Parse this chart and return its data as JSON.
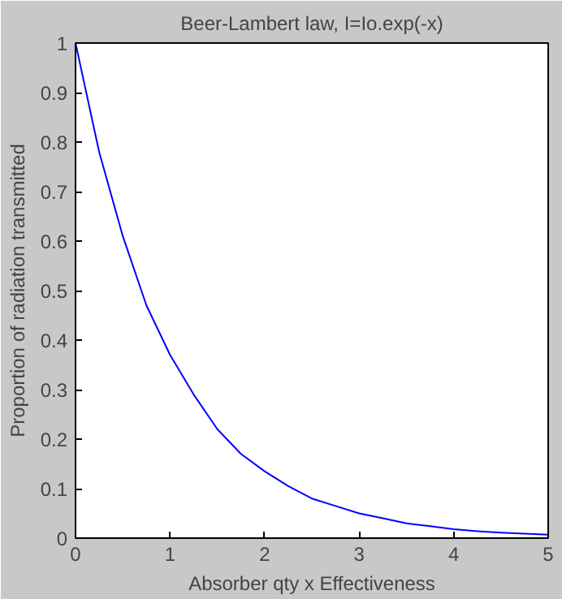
{
  "chart_data": {
    "type": "line",
    "title": "Beer-Lambert law, I=Io.exp(-x)",
    "xlabel": "Absorber qty x Effectiveness",
    "ylabel": "Proportion of radiation transmitted",
    "x": [
      0,
      0.25,
      0.5,
      0.75,
      1,
      1.25,
      1.5,
      1.75,
      2,
      2.25,
      2.5,
      2.75,
      3,
      3.25,
      3.5,
      3.75,
      4,
      4.25,
      4.5,
      4.75,
      5
    ],
    "series": [
      {
        "color": "#0000ff",
        "values": [
          1,
          0.78,
          0.61,
          0.47,
          0.37,
          0.29,
          0.22,
          0.17,
          0.135,
          0.105,
          0.08,
          0.065,
          0.05,
          0.04,
          0.03,
          0.024,
          0.018,
          0.014,
          0.011,
          0.009,
          0.007
        ]
      }
    ],
    "xlim": [
      0,
      5
    ],
    "ylim": [
      0,
      1
    ],
    "xticks": [
      0,
      1,
      2,
      3,
      4,
      5
    ],
    "yticks": [
      0,
      0.1,
      0.2,
      0.3,
      0.4,
      0.5,
      0.6,
      0.7,
      0.8,
      0.9,
      1
    ],
    "grid": false,
    "marker": "none",
    "line_style": "solid"
  }
}
